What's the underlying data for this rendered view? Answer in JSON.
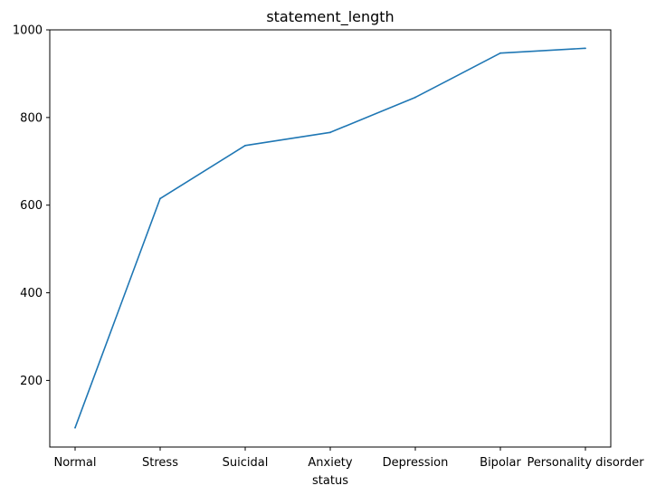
{
  "chart_data": {
    "type": "line",
    "title": "statement_length",
    "xlabel": "status",
    "ylabel": "",
    "categories": [
      "Normal",
      "Stress",
      "Suicidal",
      "Anxiety",
      "Depression",
      "Bipolar",
      "Personality disorder"
    ],
    "series": [
      {
        "values": [
          92,
          615,
          736,
          766,
          846,
          947,
          958
        ]
      }
    ],
    "yticks": [
      200,
      400,
      600,
      800,
      1000
    ],
    "ylim": [
      48,
      1000
    ],
    "grid": false,
    "colors": {
      "line": "#1f77b4"
    }
  }
}
